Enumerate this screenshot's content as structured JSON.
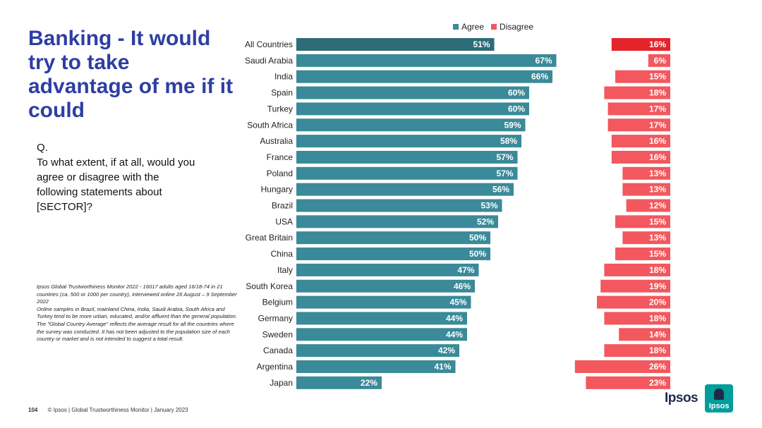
{
  "slide": {
    "title": "Banking - It would try to take advantage of me if it could",
    "question_label": "Q.",
    "question": "To what extent, if at all, would you agree or disagree with the following statements about [SECTOR]?",
    "notes": [
      "Ipsos Global Trustworthiness Monitor 2022 - 16017 adults aged 16/18-74 in 21 countries (ca. 500 or 1000 per country), interviewed online 26 August – 9 September 2022",
      "Online samples in Brazil, mainland China, India, Saudi Arabia, South Africa and Turkey tend to be more urban, educated, and/or affluent than the general population.",
      "The \"Global Country Average\" reflects the average result for all the countries where the survey was conducted. It has not been adjusted to the population size of each country or market and is not intended to suggest a total result."
    ],
    "page_number": "104",
    "footer_text": "© Ipsos | Global Trustworthiness Monitor | January 2023",
    "logo_text": "Ipsos",
    "logo_mark_text": "Ipsos"
  },
  "colors": {
    "agree": "#3a8a99",
    "agree_highlight": "#2d6c78",
    "disagree": "#f2585d",
    "disagree_highlight": "#e3242b",
    "title": "#2e3ea3",
    "logo": "#009d9a"
  },
  "chart_data": {
    "type": "bar",
    "orientation": "horizontal",
    "categories": [
      "All Countries",
      "Saudi Arabia",
      "India",
      "Spain",
      "Turkey",
      "South Africa",
      "Australia",
      "France",
      "Poland",
      "Hungary",
      "Brazil",
      "USA",
      "Great Britain",
      "China",
      "Italy",
      "South Korea",
      "Belgium",
      "Germany",
      "Sweden",
      "Canada",
      "Argentina",
      "Japan"
    ],
    "series": [
      {
        "name": "Agree",
        "values": [
          51,
          67,
          66,
          60,
          60,
          59,
          58,
          57,
          57,
          56,
          53,
          52,
          50,
          50,
          47,
          46,
          45,
          44,
          44,
          42,
          41,
          22
        ],
        "labels": [
          "51%",
          "67%",
          "66%",
          "60%",
          "60%",
          "59%",
          "58%",
          "57%",
          "57%",
          "56%",
          "53%",
          "52%",
          "50%",
          "50%",
          "47%",
          "46%",
          "45%",
          "44%",
          "44%",
          "42%",
          "41%",
          "22%"
        ]
      },
      {
        "name": "Disagree",
        "values": [
          16,
          6,
          15,
          18,
          17,
          17,
          16,
          16,
          13,
          13,
          12,
          15,
          13,
          15,
          18,
          19,
          20,
          18,
          14,
          18,
          26,
          23
        ],
        "labels": [
          "16%",
          "6%",
          "15%",
          "18%",
          "17%",
          "17%",
          "16%",
          "16%",
          "13%",
          "13%",
          "12%",
          "15%",
          "13%",
          "15%",
          "18%",
          "19%",
          "20%",
          "18%",
          "14%",
          "18%",
          "26%",
          "23%"
        ]
      }
    ],
    "highlight_category": "All Countries",
    "legend_position": "top",
    "grid": false
  }
}
